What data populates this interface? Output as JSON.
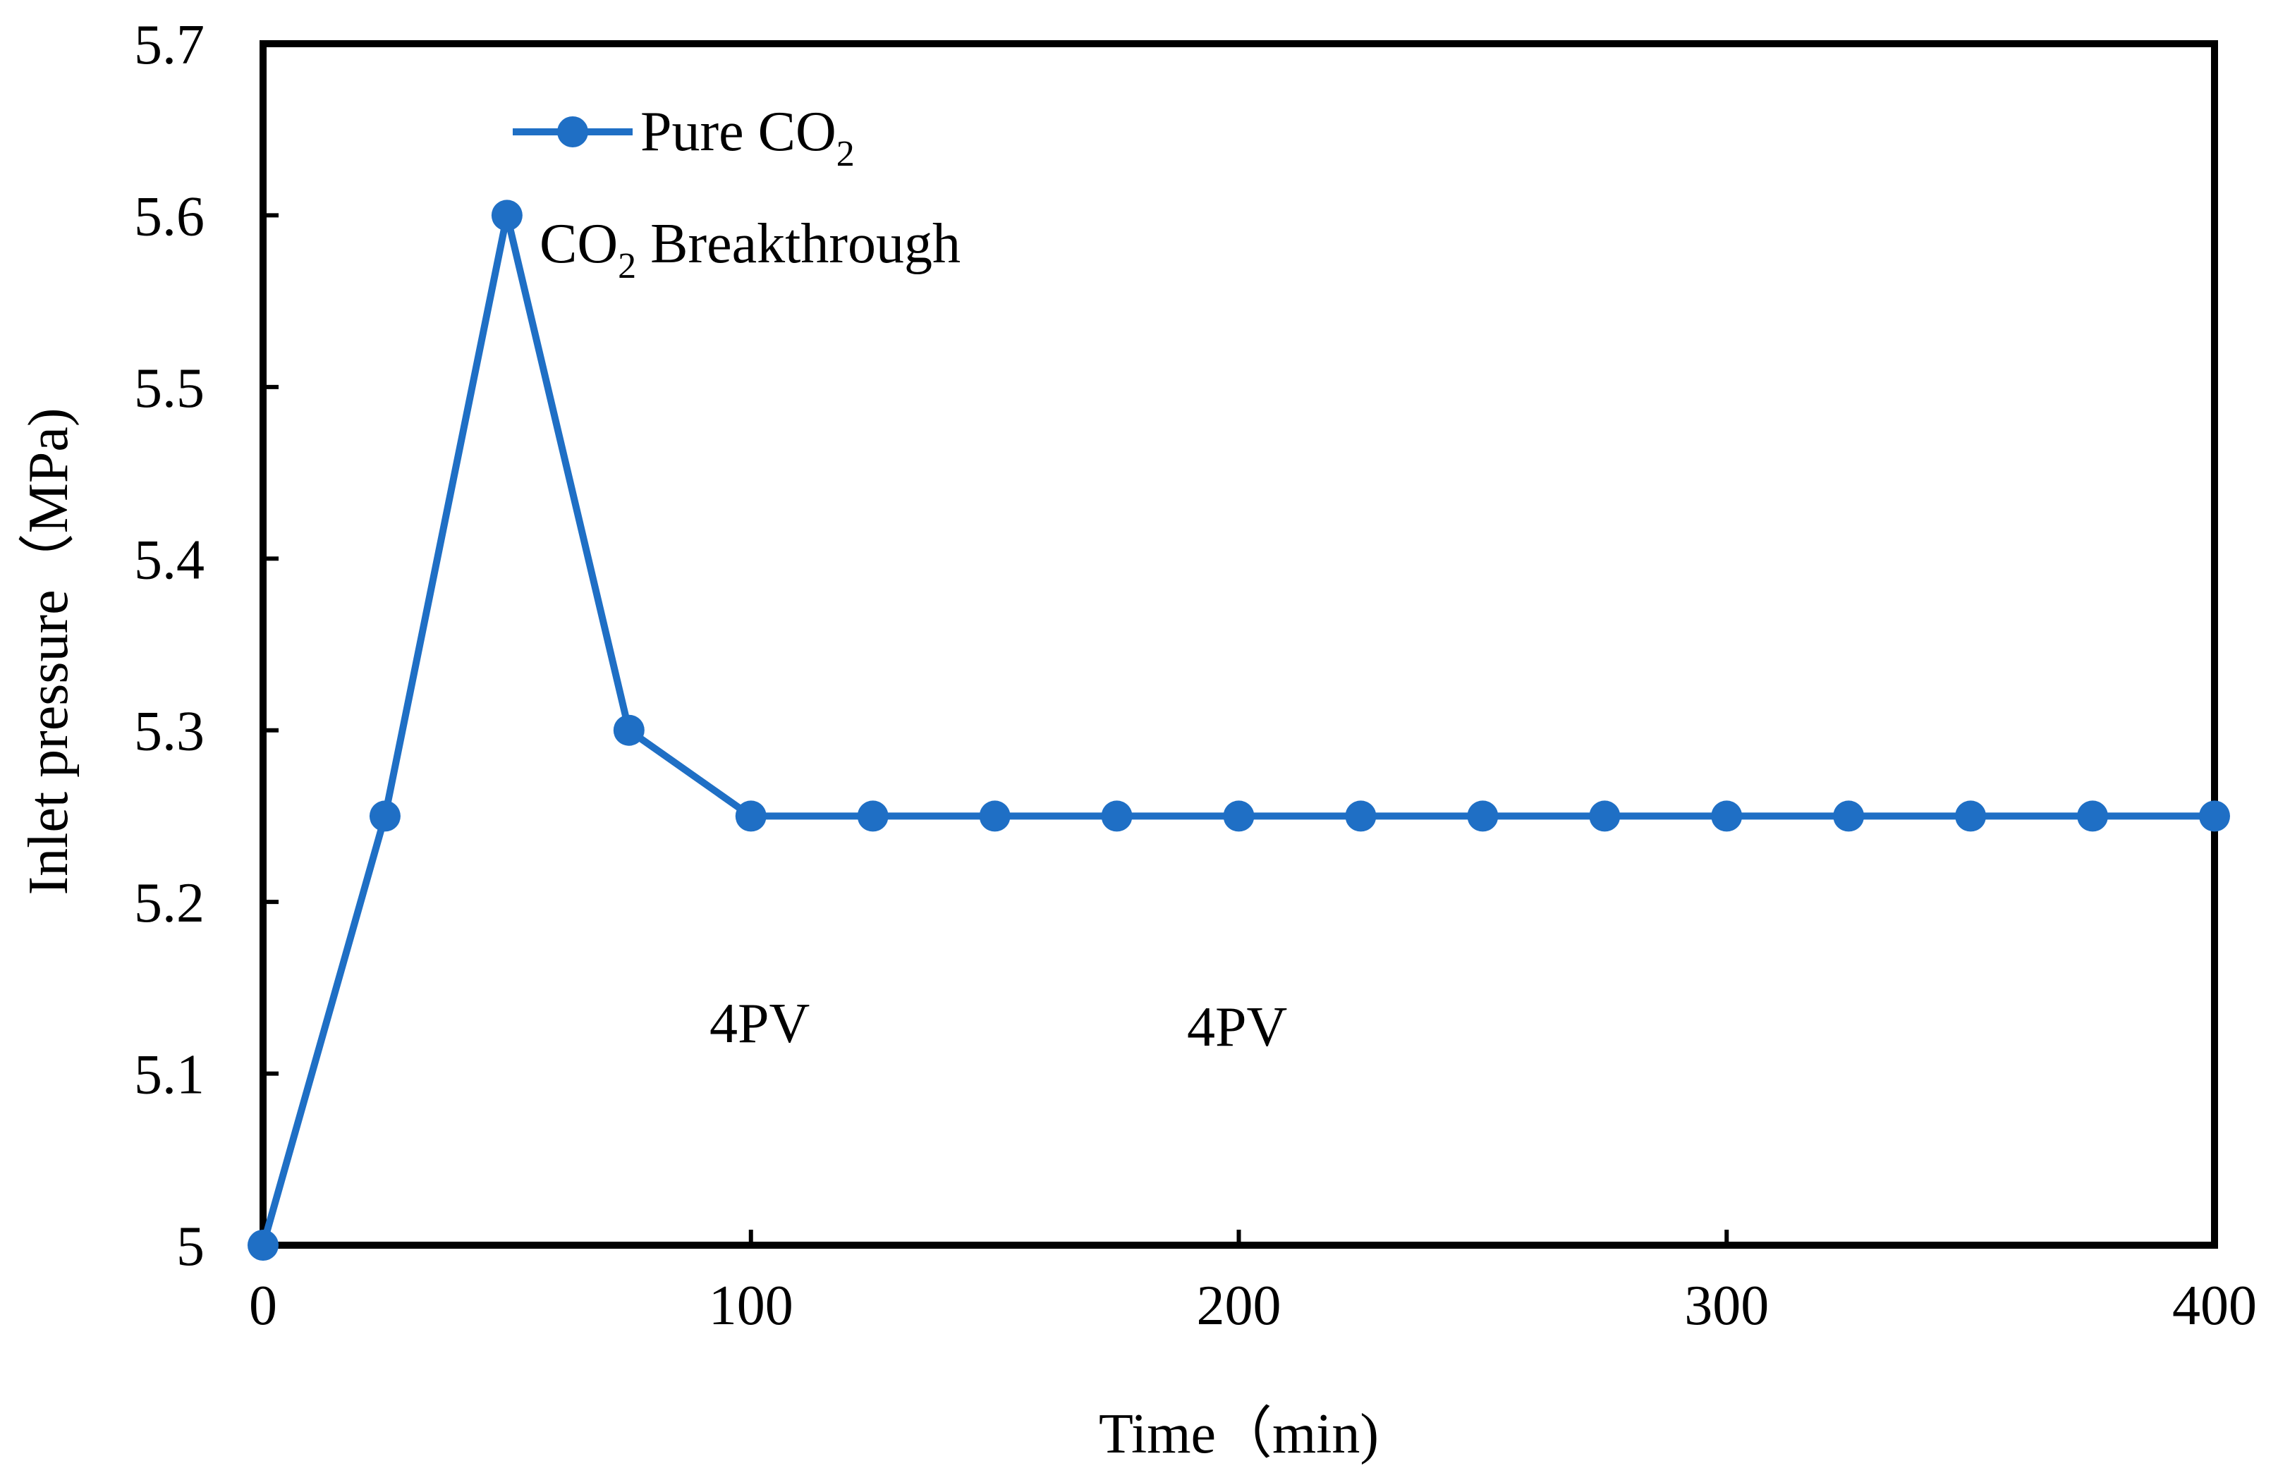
{
  "chart_data": {
    "type": "line",
    "title": "",
    "xlabel": "Time（min)",
    "ylabel": "Inlet pressure（MPa)",
    "xlim": [
      0,
      400
    ],
    "ylim": [
      5.0,
      5.7
    ],
    "xticks": [
      0,
      100,
      200,
      300,
      400
    ],
    "xtick_labels": [
      "0",
      "100",
      "200",
      "300",
      "400"
    ],
    "yticks": [
      5.0,
      5.1,
      5.2,
      5.3,
      5.4,
      5.5,
      5.6,
      5.7
    ],
    "ytick_labels": [
      "5",
      "5.1",
      "5.2",
      "5.3",
      "5.4",
      "5.5",
      "5.6",
      "5.7"
    ],
    "grid": false,
    "legend_position": "top-left",
    "series": [
      {
        "name": "Pure   CO2",
        "name_main": "Pure   CO",
        "name_sub": "2",
        "color": "#1f6fc5",
        "x": [
          0,
          25,
          50,
          75,
          100,
          125,
          150,
          175,
          200,
          225,
          250,
          275,
          300,
          325,
          350,
          375,
          400
        ],
        "y": [
          5.0,
          5.25,
          5.6,
          5.3,
          5.25,
          5.25,
          5.25,
          5.25,
          5.25,
          5.25,
          5.25,
          5.25,
          5.25,
          5.25,
          5.25,
          5.25,
          5.25
        ]
      }
    ],
    "annotations": [
      {
        "id": "breakthrough",
        "text_main": "CO",
        "text_sub": "2",
        "text_rest": " Breakthrough",
        "x": 56,
        "y": 5.58
      },
      {
        "id": "pv1",
        "text": "4PV",
        "x": 91,
        "y": 5.13
      },
      {
        "id": "pv2",
        "text": "4PV",
        "x": 189,
        "y": 5.13
      }
    ]
  }
}
